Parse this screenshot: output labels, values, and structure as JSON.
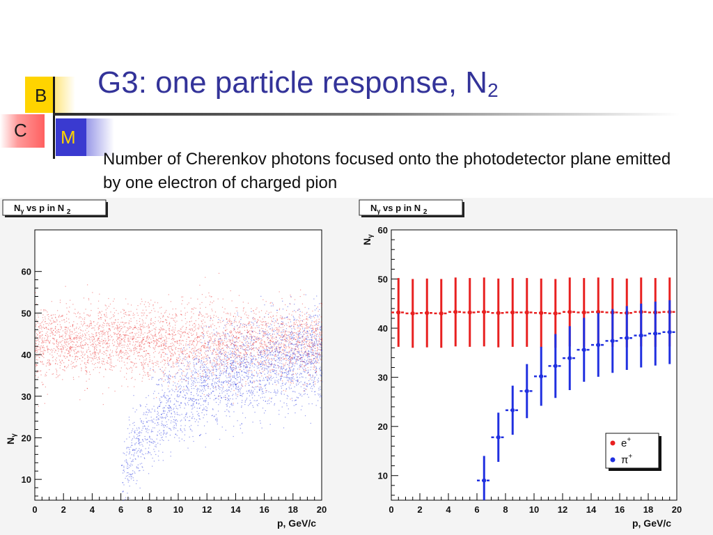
{
  "logo": {
    "b": "B",
    "c": "C",
    "m": "M"
  },
  "title": {
    "main": "G3: one particle response, N",
    "sub": "2"
  },
  "caption": "Number of Cherenkov photons focused onto the photodetector plane emitted by one electron of charged pion",
  "colors": {
    "title": "#333399",
    "electron": "#e82020",
    "pion": "#2030e0",
    "accent_yellow": "#ffd400",
    "accent_blue": "#3a3ad0"
  },
  "chart_data": [
    {
      "type": "scatter",
      "title": "Nγ vs p in N 2",
      "title_parts": {
        "n": "N",
        "gamma": "γ",
        "mid": " vs p in N ",
        "sub": "2"
      },
      "xlabel": "p, GeV/c",
      "ylabel": "Nγ",
      "xlim": [
        0,
        20
      ],
      "ylim": [
        5,
        70
      ],
      "xticks": [
        "0",
        "2",
        "4",
        "6",
        "8",
        "10",
        "12",
        "14",
        "16",
        "18",
        "20"
      ],
      "yticks": [
        "10",
        "20",
        "30",
        "40",
        "50",
        "60"
      ],
      "series": [
        {
          "particle": "e+",
          "color": "#e82020",
          "band_mean": 43,
          "band_spread": 8,
          "p_min": 0,
          "p_max": 20
        },
        {
          "particle": "pi+",
          "color": "#2030e0",
          "p_threshold": 6,
          "mean_curve": [
            [
              6,
              10
            ],
            [
              7,
              18
            ],
            [
              8,
              23
            ],
            [
              9,
              27
            ],
            [
              10,
              30
            ],
            [
              12,
              33
            ],
            [
              14,
              36
            ],
            [
              16,
              38
            ],
            [
              18,
              39
            ],
            [
              20,
              40
            ]
          ]
        }
      ]
    },
    {
      "type": "scatter",
      "title": "Nγ vs p in N 2",
      "title_parts": {
        "n": "N",
        "gamma": "γ",
        "mid": " vs p in N ",
        "sub": "2"
      },
      "xlabel": "p, GeV/c",
      "ylabel": "Nγ",
      "xlim": [
        0,
        20
      ],
      "ylim": [
        5,
        60
      ],
      "xticks": [
        "0",
        "2",
        "4",
        "6",
        "8",
        "10",
        "12",
        "14",
        "16",
        "18",
        "20"
      ],
      "yticks": [
        "10",
        "20",
        "30",
        "40",
        "50",
        "60"
      ],
      "legend": {
        "position": "bottom-right",
        "entries": [
          {
            "label": "e",
            "sup": "+"
          },
          {
            "label": "π",
            "sup": "+"
          }
        ]
      },
      "series": [
        {
          "name": "e+",
          "color": "#e82020",
          "x": [
            0.5,
            1.5,
            2.5,
            3.5,
            4.5,
            5.5,
            6.5,
            7.5,
            8.5,
            9.5,
            10.5,
            11.5,
            12.5,
            13.5,
            14.5,
            15.5,
            16.5,
            17.5,
            18.5,
            19.5
          ],
          "y": [
            43.2,
            43.0,
            43.1,
            43.0,
            43.3,
            43.2,
            43.3,
            43.1,
            43.2,
            43.2,
            43.1,
            43.0,
            43.3,
            43.2,
            43.3,
            43.2,
            43.1,
            43.3,
            43.2,
            43.3
          ],
          "err": [
            7,
            7,
            7,
            7,
            7,
            7,
            7,
            7,
            7,
            7,
            7,
            7,
            7,
            7,
            7,
            7,
            7,
            7,
            7,
            7
          ]
        },
        {
          "name": "pi+",
          "color": "#2030e0",
          "x": [
            6.5,
            7.5,
            8.5,
            9.5,
            10.5,
            11.5,
            12.5,
            13.5,
            14.5,
            15.5,
            16.5,
            17.5,
            18.5,
            19.5
          ],
          "y": [
            9,
            17.8,
            23.3,
            27.2,
            30.2,
            32.3,
            33.9,
            35.6,
            36.6,
            37.4,
            38.0,
            38.5,
            38.9,
            39.2
          ],
          "err": [
            5,
            5,
            5,
            5.5,
            6,
            6.5,
            6.5,
            6.5,
            6.5,
            6.5,
            6.5,
            6.5,
            6.5,
            6.5
          ]
        }
      ]
    }
  ]
}
